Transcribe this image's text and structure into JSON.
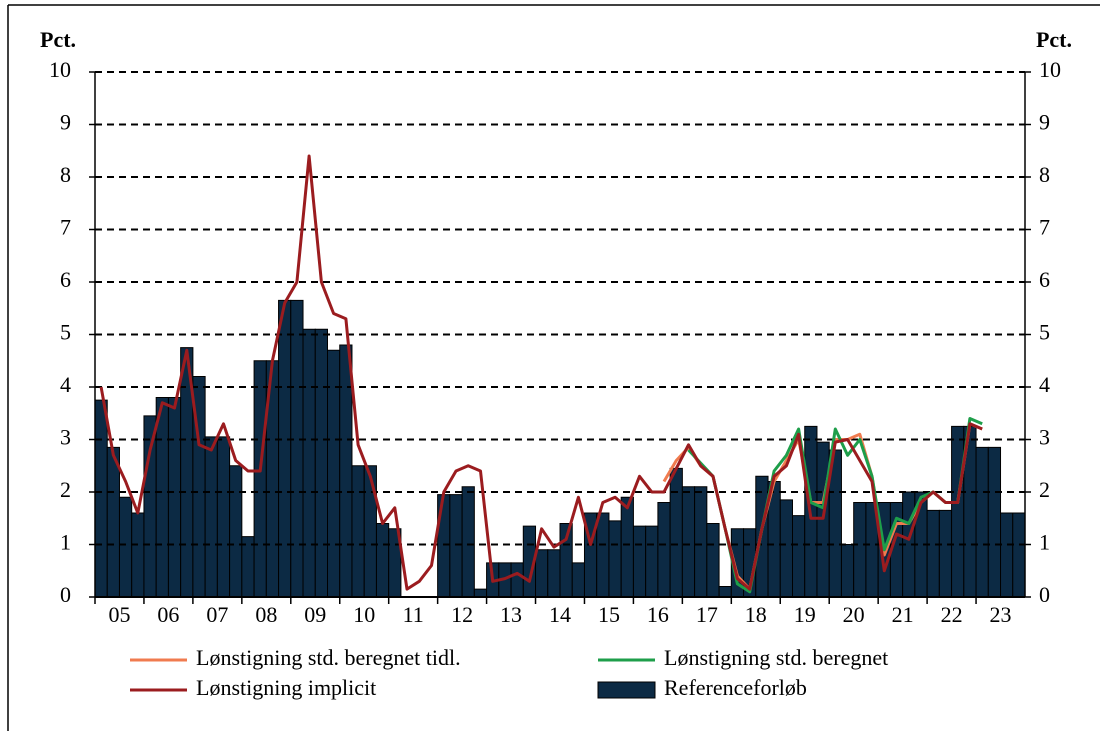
{
  "chart_data": {
    "type": "bar_line",
    "ylabel": "Pct.",
    "y2label": "Pct.",
    "ylim": [
      0,
      10
    ],
    "yticks": [
      0,
      1,
      2,
      3,
      4,
      5,
      6,
      7,
      8,
      9,
      10
    ],
    "y2lim": [
      0,
      10
    ],
    "y2ticks": [
      0,
      1,
      2,
      3,
      4,
      5,
      6,
      7,
      8,
      9,
      10
    ],
    "grid": true,
    "categories": [
      null,
      null,
      "05",
      null,
      null,
      null,
      "06",
      null,
      null,
      null,
      "07",
      null,
      null,
      null,
      "08",
      null,
      null,
      null,
      "09",
      null,
      null,
      null,
      "10",
      null,
      null,
      null,
      "11",
      null,
      null,
      null,
      "12",
      null,
      null,
      null,
      "13",
      null,
      null,
      null,
      "14",
      null,
      null,
      null,
      "15",
      null,
      null,
      null,
      "16",
      null,
      null,
      null,
      "17",
      null,
      null,
      null,
      "18",
      null,
      null,
      null,
      "19",
      null,
      null,
      null,
      "20",
      null,
      null,
      null,
      "21",
      null,
      null,
      null,
      "22",
      null,
      null,
      null,
      "23",
      null
    ],
    "series": [
      {
        "name": "Referenceforløb",
        "kind": "bar",
        "color": "#0c2a44",
        "values": [
          3.75,
          2.85,
          1.9,
          1.6,
          3.45,
          3.8,
          3.8,
          4.75,
          4.2,
          3.05,
          3.05,
          2.5,
          1.15,
          4.5,
          4.5,
          5.65,
          5.65,
          5.1,
          5.1,
          4.7,
          4.8,
          2.5,
          2.5,
          1.4,
          1.3,
          0,
          0,
          0,
          1.95,
          1.95,
          2.1,
          0.15,
          0.65,
          0.65,
          0.65,
          1.35,
          0.9,
          0.9,
          1.4,
          0.65,
          1.6,
          1.6,
          1.45,
          1.9,
          1.35,
          1.35,
          1.8,
          2.45,
          2.1,
          2.1,
          1.4,
          0.2,
          1.3,
          1.3,
          2.3,
          2.2,
          1.85,
          1.55,
          3.25,
          2.95,
          2.8,
          1.0,
          1.8,
          1.8,
          1.8,
          1.8,
          2.0,
          2.0,
          1.65,
          1.65,
          3.25,
          3.25,
          2.85,
          2.85,
          1.6,
          1.6
        ]
      },
      {
        "name": "Lønstigning std. beregnet tidl.",
        "kind": "line",
        "color": "#f07b4f",
        "values": [
          null,
          null,
          null,
          null,
          null,
          null,
          null,
          null,
          null,
          null,
          null,
          null,
          null,
          null,
          null,
          null,
          null,
          null,
          null,
          null,
          null,
          null,
          null,
          null,
          null,
          null,
          null,
          null,
          null,
          null,
          null,
          null,
          null,
          null,
          null,
          null,
          null,
          null,
          null,
          null,
          null,
          null,
          null,
          null,
          null,
          null,
          2.2,
          2.6,
          2.85,
          2.5,
          2.3,
          1.3,
          0.4,
          0.15,
          1.3,
          2.2,
          2.6,
          3.0,
          1.8,
          1.8,
          3.0,
          3.0,
          3.1,
          2.3,
          0.8,
          1.4,
          1.4,
          1.8,
          2.0,
          1.8,
          1.8,
          3.3,
          3.2,
          null,
          null,
          null
        ]
      },
      {
        "name": "Lønstigning std. beregnet",
        "kind": "line",
        "color": "#1e9e4a",
        "values": [
          null,
          null,
          null,
          null,
          null,
          null,
          null,
          null,
          null,
          null,
          null,
          null,
          null,
          null,
          null,
          null,
          null,
          null,
          null,
          null,
          null,
          null,
          null,
          null,
          null,
          null,
          null,
          null,
          null,
          null,
          null,
          null,
          null,
          null,
          null,
          null,
          null,
          null,
          null,
          null,
          null,
          null,
          null,
          null,
          null,
          null,
          null,
          null,
          2.8,
          2.55,
          2.3,
          1.3,
          0.25,
          0.1,
          1.3,
          2.4,
          2.7,
          3.2,
          1.8,
          1.7,
          3.2,
          2.7,
          3.0,
          2.3,
          0.9,
          1.5,
          1.4,
          1.9,
          2.0,
          1.8,
          1.8,
          3.4,
          3.3,
          null,
          null,
          null
        ]
      },
      {
        "name": "Lønstigning implicit",
        "kind": "line",
        "color": "#9b1c1f",
        "values": [
          4.0,
          2.7,
          2.2,
          1.6,
          2.8,
          3.7,
          3.6,
          4.7,
          2.9,
          2.8,
          3.3,
          2.6,
          2.4,
          2.4,
          4.5,
          5.6,
          6.0,
          8.4,
          6.0,
          5.4,
          5.3,
          2.9,
          2.3,
          1.4,
          1.7,
          0.15,
          0.3,
          0.6,
          2.0,
          2.4,
          2.5,
          2.4,
          0.3,
          0.35,
          0.45,
          0.3,
          1.3,
          0.95,
          1.1,
          1.9,
          1.0,
          1.8,
          1.9,
          1.7,
          2.3,
          2.0,
          2.0,
          2.45,
          2.9,
          2.5,
          2.3,
          1.3,
          0.35,
          0.15,
          1.3,
          2.3,
          2.5,
          3.1,
          1.5,
          1.5,
          2.95,
          3.0,
          2.6,
          2.2,
          0.5,
          1.2,
          1.1,
          1.8,
          2.0,
          1.8,
          1.8,
          3.3,
          3.2,
          null,
          null,
          null
        ]
      }
    ]
  }
}
